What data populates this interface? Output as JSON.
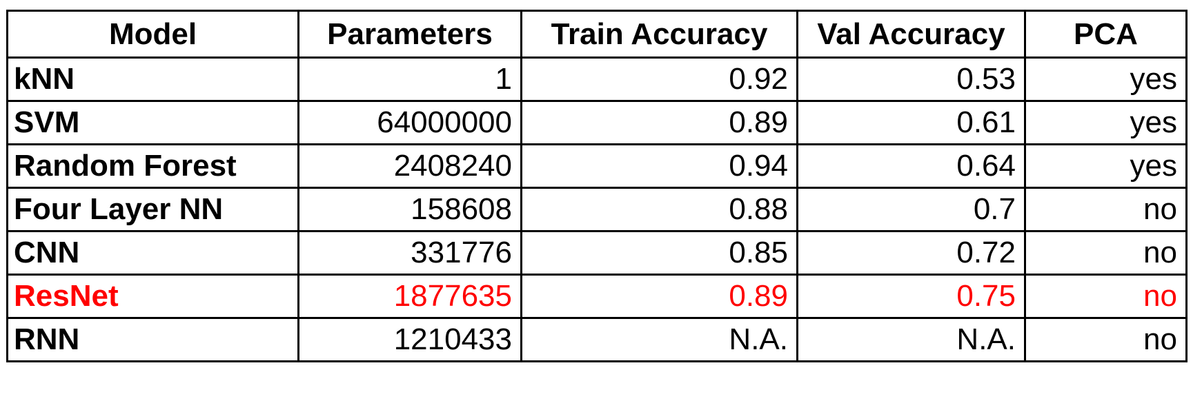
{
  "chart_data": {
    "type": "table",
    "columns": [
      "Model",
      "Parameters",
      "Train Accuracy",
      "Val Accuracy",
      "PCA"
    ],
    "rows": [
      {
        "model": "kNN",
        "parameters": "1",
        "train_accuracy": "0.92",
        "val_accuracy": "0.53",
        "pca": "yes",
        "highlight": false
      },
      {
        "model": "SVM",
        "parameters": "64000000",
        "train_accuracy": "0.89",
        "val_accuracy": "0.61",
        "pca": "yes",
        "highlight": false
      },
      {
        "model": "Random Forest",
        "parameters": "2408240",
        "train_accuracy": "0.94",
        "val_accuracy": "0.64",
        "pca": "yes",
        "highlight": false
      },
      {
        "model": "Four Layer NN",
        "parameters": "158608",
        "train_accuracy": "0.88",
        "val_accuracy": "0.7",
        "pca": "no",
        "highlight": false
      },
      {
        "model": "CNN",
        "parameters": "331776",
        "train_accuracy": "0.85",
        "val_accuracy": "0.72",
        "pca": "no",
        "highlight": false
      },
      {
        "model": "ResNet",
        "parameters": "1877635",
        "train_accuracy": "0.89",
        "val_accuracy": "0.75",
        "pca": "no",
        "highlight": true
      },
      {
        "model": "RNN",
        "parameters": "1210433",
        "train_accuracy": "N.A.",
        "val_accuracy": "N.A.",
        "pca": "no",
        "highlight": false
      }
    ]
  },
  "colors": {
    "text": "#000000",
    "highlight": "#ff0000",
    "border": "#000000",
    "background": "#ffffff"
  }
}
